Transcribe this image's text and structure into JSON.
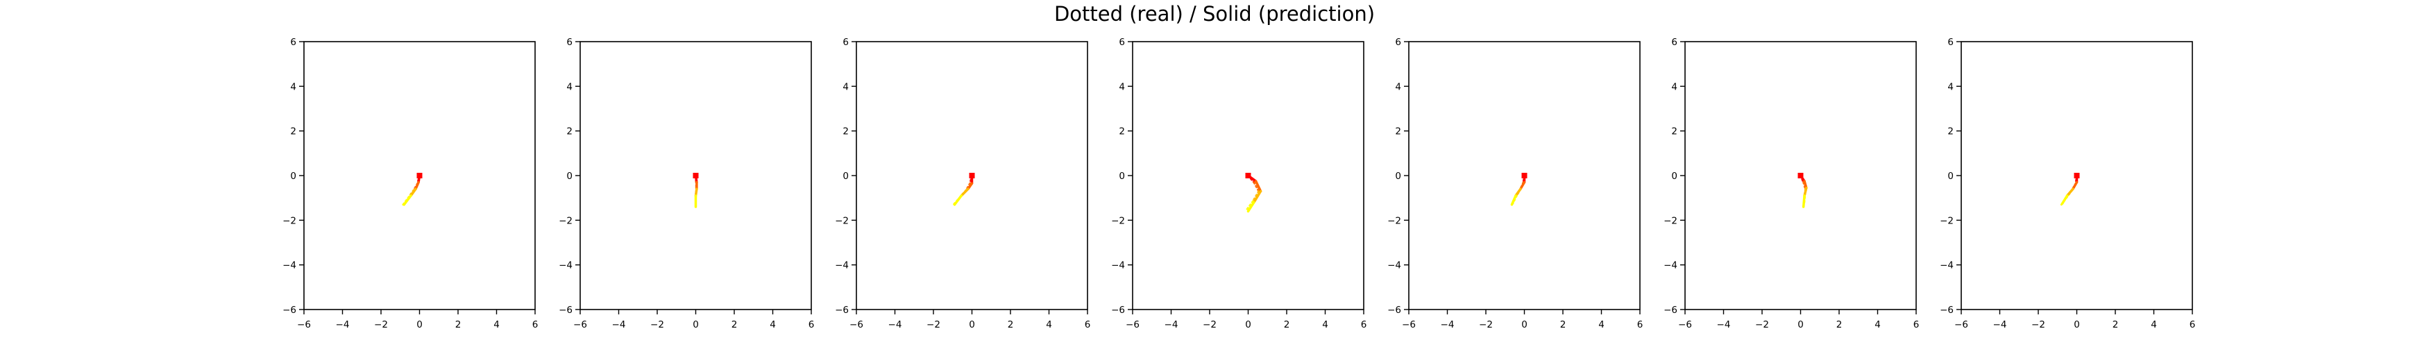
{
  "figure": {
    "title": "Dotted (real) / Solid (prediction)"
  },
  "colors": {
    "path_start": "#ffff00",
    "path_mid": "#ff9900",
    "path_end": "#ff0000",
    "axes": "#000000",
    "background": "#ffffff"
  },
  "chart_data": [
    {
      "type": "line",
      "xlim": [
        -6,
        6
      ],
      "ylim": [
        -6,
        6
      ],
      "xticks": [
        -6,
        -4,
        -2,
        0,
        2,
        4,
        6
      ],
      "yticks": [
        -6,
        -4,
        -2,
        0,
        2,
        4,
        6
      ],
      "grid": false,
      "series": [
        {
          "style": "solid",
          "x": [
            0.0,
            -0.05,
            -0.2,
            -0.45,
            -0.8
          ],
          "y": [
            0.0,
            -0.3,
            -0.6,
            -0.9,
            -1.3
          ]
        },
        {
          "style": "dotted",
          "x": [
            0.0,
            -0.1,
            -0.3,
            -0.55,
            -0.85
          ],
          "y": [
            0.0,
            -0.35,
            -0.65,
            -0.95,
            -1.3
          ]
        }
      ]
    },
    {
      "type": "line",
      "xlim": [
        -6,
        6
      ],
      "ylim": [
        -6,
        6
      ],
      "xticks": [
        -6,
        -4,
        -2,
        0,
        2,
        4,
        6
      ],
      "yticks": [
        -6,
        -4,
        -2,
        0,
        2,
        4,
        6
      ],
      "grid": false,
      "series": [
        {
          "style": "solid",
          "x": [
            0.0,
            0.05,
            0.05,
            0.0,
            0.0
          ],
          "y": [
            0.0,
            -0.3,
            -0.6,
            -0.9,
            -1.4
          ]
        },
        {
          "style": "dotted",
          "x": [
            0.0,
            0.02,
            0.03,
            0.02,
            0.0
          ],
          "y": [
            0.0,
            -0.25,
            -0.5,
            -0.75,
            -1.0
          ]
        }
      ]
    },
    {
      "type": "line",
      "xlim": [
        -6,
        6
      ],
      "ylim": [
        -6,
        6
      ],
      "xticks": [
        -6,
        -4,
        -2,
        0,
        2,
        4,
        6
      ],
      "yticks": [
        -6,
        -4,
        -2,
        0,
        2,
        4,
        6
      ],
      "grid": false,
      "series": [
        {
          "style": "solid",
          "x": [
            0.0,
            0.0,
            -0.2,
            -0.55,
            -0.9
          ],
          "y": [
            0.0,
            -0.35,
            -0.6,
            -0.9,
            -1.3
          ]
        },
        {
          "style": "dotted",
          "x": [
            0.0,
            -0.1,
            -0.3,
            -0.6,
            -0.95
          ],
          "y": [
            0.0,
            -0.35,
            -0.65,
            -0.95,
            -1.3
          ]
        }
      ]
    },
    {
      "type": "line",
      "xlim": [
        -6,
        6
      ],
      "ylim": [
        -6,
        6
      ],
      "xticks": [
        -6,
        -4,
        -2,
        0,
        2,
        4,
        6
      ],
      "yticks": [
        -6,
        -4,
        -2,
        0,
        2,
        4,
        6
      ],
      "grid": false,
      "series": [
        {
          "style": "solid",
          "x": [
            0.0,
            0.4,
            0.65,
            0.3,
            0.0
          ],
          "y": [
            0.0,
            -0.25,
            -0.7,
            -1.2,
            -1.6
          ]
        },
        {
          "style": "dotted",
          "x": [
            0.0,
            0.3,
            0.55,
            0.25,
            -0.05
          ],
          "y": [
            0.0,
            -0.3,
            -0.7,
            -1.15,
            -1.5
          ]
        }
      ]
    },
    {
      "type": "line",
      "xlim": [
        -6,
        6
      ],
      "ylim": [
        -6,
        6
      ],
      "xticks": [
        -6,
        -4,
        -2,
        0,
        2,
        4,
        6
      ],
      "yticks": [
        -6,
        -4,
        -2,
        0,
        2,
        4,
        6
      ],
      "grid": false,
      "series": [
        {
          "style": "solid",
          "x": [
            0.0,
            0.0,
            -0.2,
            -0.45,
            -0.65
          ],
          "y": [
            0.0,
            -0.3,
            -0.6,
            -0.9,
            -1.3
          ]
        },
        {
          "style": "dotted",
          "x": [
            0.0,
            -0.05,
            -0.2,
            -0.4,
            -0.6
          ],
          "y": [
            0.0,
            -0.3,
            -0.6,
            -0.9,
            -1.25
          ]
        }
      ]
    },
    {
      "type": "line",
      "xlim": [
        -6,
        6
      ],
      "ylim": [
        -6,
        6
      ],
      "xticks": [
        -6,
        -4,
        -2,
        0,
        2,
        4,
        6
      ],
      "yticks": [
        -6,
        -4,
        -2,
        0,
        2,
        4,
        6
      ],
      "grid": false,
      "series": [
        {
          "style": "solid",
          "x": [
            0.0,
            0.2,
            0.3,
            0.2,
            0.15
          ],
          "y": [
            0.0,
            -0.25,
            -0.55,
            -0.9,
            -1.4
          ]
        },
        {
          "style": "dotted",
          "x": [
            0.0,
            0.15,
            0.25,
            0.22,
            0.18
          ],
          "y": [
            0.0,
            -0.3,
            -0.6,
            -0.95,
            -1.3
          ]
        }
      ]
    },
    {
      "type": "line",
      "xlim": [
        -6,
        6
      ],
      "ylim": [
        -6,
        6
      ],
      "xticks": [
        -6,
        -4,
        -2,
        0,
        2,
        4,
        6
      ],
      "yticks": [
        -6,
        -4,
        -2,
        0,
        2,
        4,
        6
      ],
      "grid": false,
      "series": [
        {
          "style": "solid",
          "x": [
            0.0,
            0.0,
            -0.2,
            -0.5,
            -0.75
          ],
          "y": [
            0.0,
            -0.3,
            -0.6,
            -0.9,
            -1.25
          ]
        },
        {
          "style": "dotted",
          "x": [
            0.0,
            -0.05,
            -0.25,
            -0.5,
            -0.8
          ],
          "y": [
            0.0,
            -0.35,
            -0.65,
            -0.95,
            -1.3
          ]
        }
      ]
    }
  ]
}
